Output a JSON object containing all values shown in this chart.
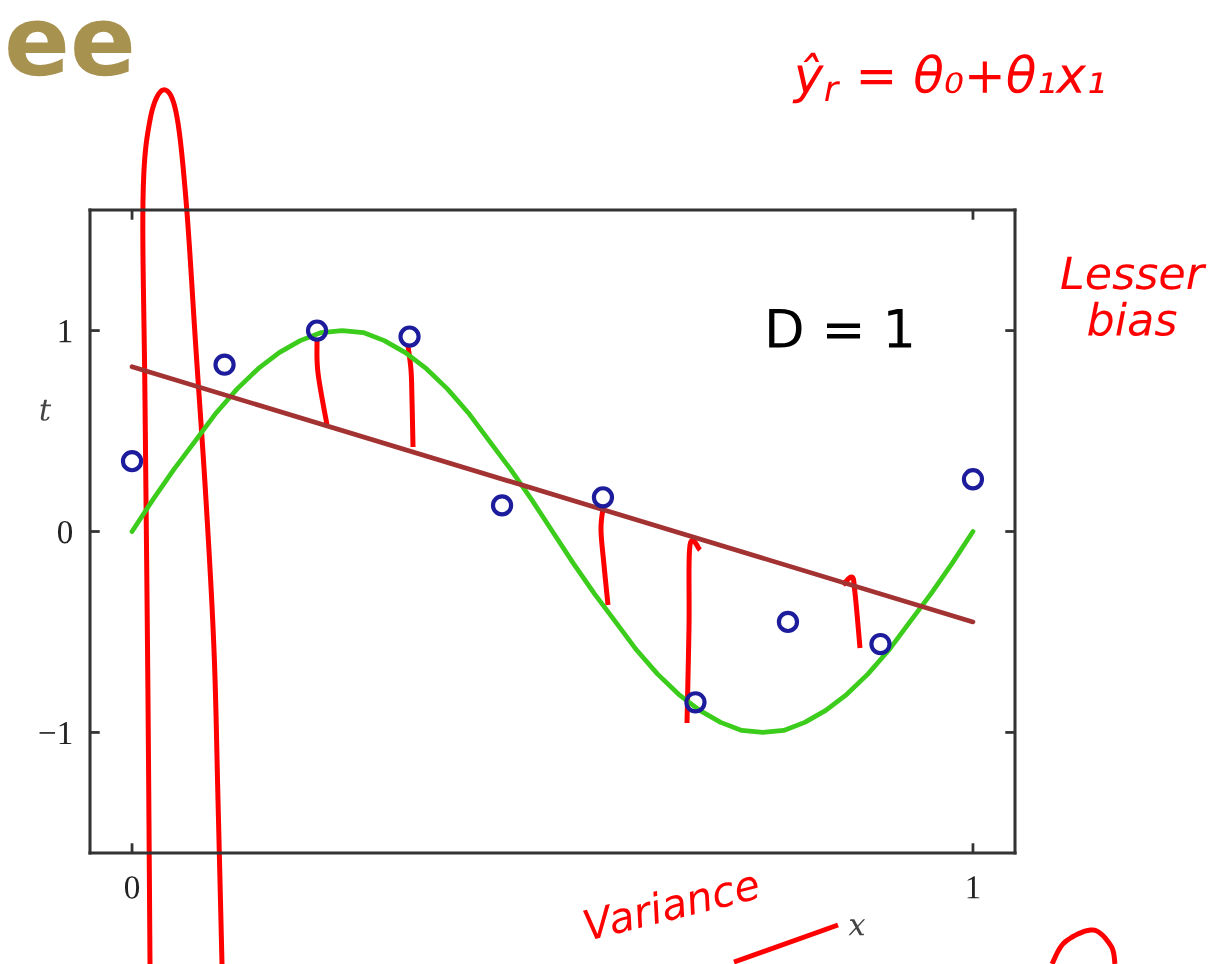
{
  "chart_data": {
    "type": "scatter",
    "title": "ee",
    "xlabel": "x",
    "ylabel": "t",
    "xlim": [
      -0.05,
      1.05
    ],
    "ylim": [
      -1.6,
      1.6
    ],
    "xticks": [
      0,
      1
    ],
    "yticks": [
      {
        "value": -1,
        "label": "−1"
      },
      0,
      1
    ],
    "annotations": [
      "D = 1",
      "ŷ$_{r}$ = θ₀+θ₁x₁",
      "Lesser\nbias",
      "Variance"
    ],
    "series": [
      {
        "type": "line",
        "color": "#3ccc1c",
        "x": [
          0,
          0.025,
          0.05,
          0.075,
          0.1,
          0.125,
          0.15,
          0.175,
          0.2,
          0.225,
          0.25,
          0.275,
          0.3,
          0.325,
          0.35,
          0.375,
          0.4,
          0.425,
          0.45,
          0.475,
          0.5,
          0.525,
          0.55,
          0.575,
          0.6,
          0.625,
          0.65,
          0.675,
          0.7,
          0.725,
          0.75,
          0.775,
          0.8,
          0.825,
          0.85,
          0.875,
          0.9,
          0.925,
          0.95,
          0.975,
          1
        ],
        "values": [
          0,
          0.16,
          0.31,
          0.45,
          0.59,
          0.71,
          0.81,
          0.89,
          0.95,
          0.99,
          1.0,
          0.99,
          0.95,
          0.89,
          0.81,
          0.71,
          0.59,
          0.45,
          0.31,
          0.16,
          0,
          -0.16,
          -0.31,
          -0.45,
          -0.59,
          -0.71,
          -0.81,
          -0.89,
          -0.95,
          -0.99,
          -1.0,
          -0.99,
          -0.95,
          -0.89,
          -0.81,
          -0.71,
          -0.59,
          -0.45,
          -0.31,
          -0.16,
          0
        ]
      },
      {
        "type": "line",
        "color": "#a33232",
        "x": [
          0,
          1
        ],
        "values": [
          0.82,
          -0.45
        ]
      },
      {
        "marker": "circle",
        "color": "#1c1c9c",
        "x": [
          0,
          0.11,
          0.22,
          0.33,
          0.44,
          0.56,
          0.67,
          0.78,
          0.89,
          1
        ],
        "values": [
          0.35,
          0.83,
          1.0,
          0.97,
          0.13,
          0.17,
          -0.85,
          -0.45,
          -0.56,
          0.26
        ]
      }
    ]
  }
}
